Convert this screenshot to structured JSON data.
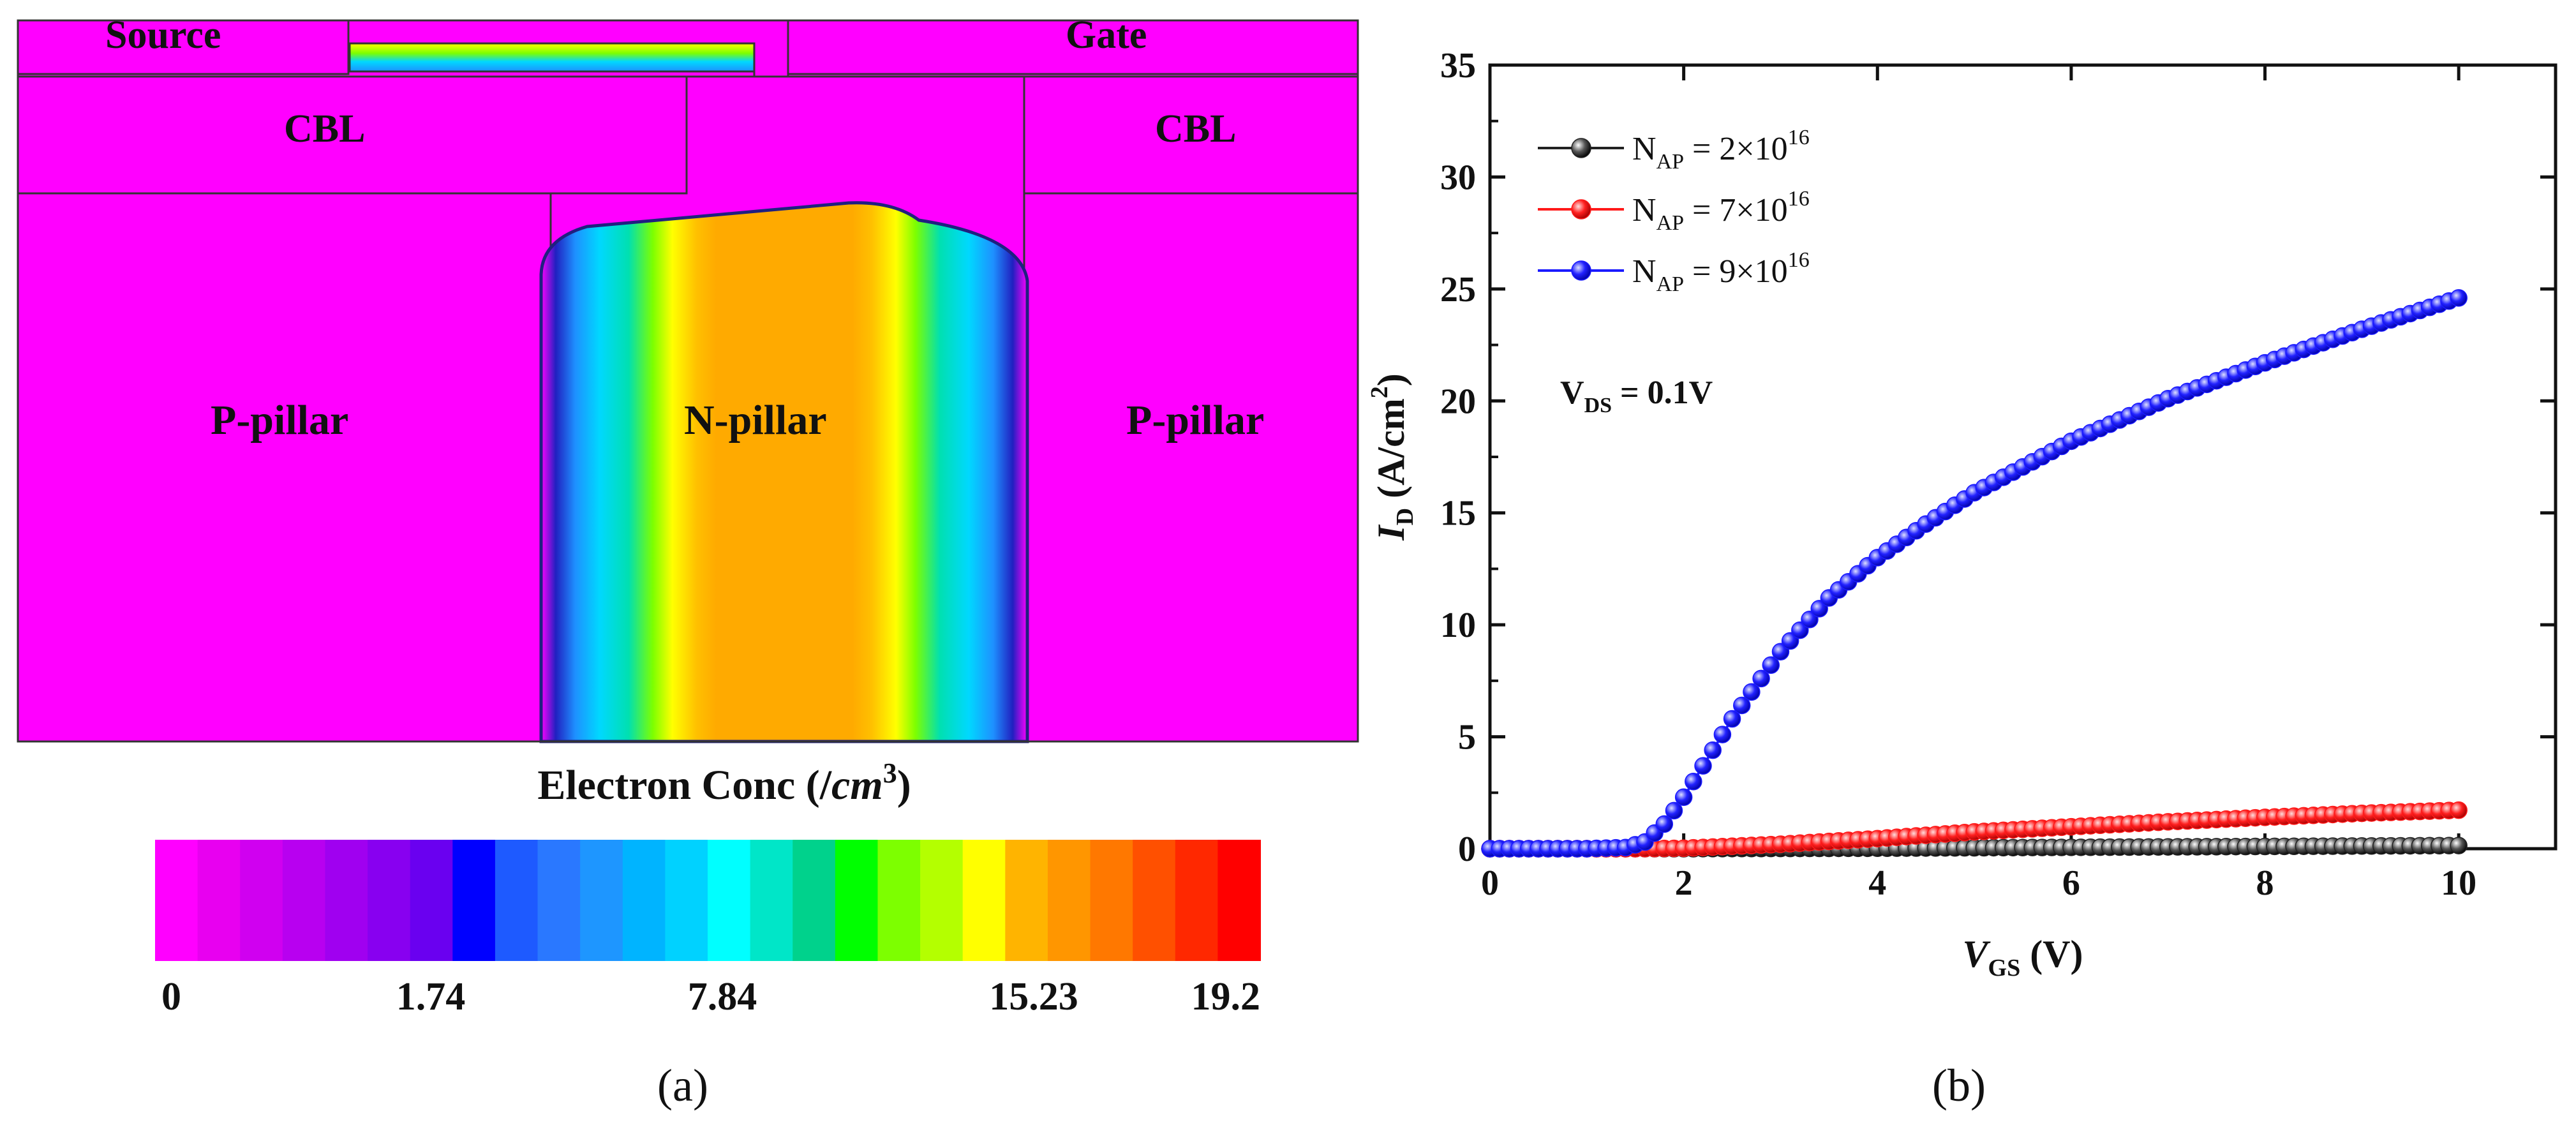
{
  "panel_a": {
    "caption": "(a)",
    "labels": {
      "source": "Source",
      "gate": "Gate",
      "cbl_left": "CBL",
      "cbl_right": "CBL",
      "p_pillar_left": "P-pillar",
      "n_pillar": "N-pillar",
      "p_pillar_right": "P-pillar"
    },
    "colorbar": {
      "title_prefix": "Electron Conc (/",
      "title_unit": "cm",
      "title_exp": "3",
      "title_suffix": ")",
      "ticks": [
        "0",
        "1.74",
        "7.84",
        "15.23",
        "19.2"
      ],
      "colors": [
        "#ff00ff",
        "#e800f0",
        "#d000f0",
        "#b800f0",
        "#a000f0",
        "#8800f0",
        "#6a00f0",
        "#0000ff",
        "#1e5aff",
        "#2a78ff",
        "#1e96ff",
        "#00b4ff",
        "#00d2ff",
        "#00ffff",
        "#00e6c8",
        "#00d28c",
        "#00ff00",
        "#7dff00",
        "#b4ff00",
        "#ffff00",
        "#ffb400",
        "#ff9600",
        "#ff7800",
        "#ff5000",
        "#ff2800",
        "#ff0000"
      ]
    }
  },
  "panel_b": {
    "caption": "(b)",
    "annotation": {
      "main": "V",
      "sub": "DS",
      "rest": " = 0.1V"
    },
    "chart_data": {
      "type": "scatter",
      "title": "",
      "xlabel": {
        "main": "V",
        "sub": "GS",
        "rest": " (V)"
      },
      "ylabel": {
        "main": "I",
        "sub": "D",
        "rest": " (A/cm",
        "sup": "2",
        "end": ")"
      },
      "xlim": [
        0,
        11
      ],
      "ylim": [
        0,
        35
      ],
      "x_ticks": [
        "0",
        "2",
        "4",
        "6",
        "8",
        "10"
      ],
      "y_ticks": [
        "0",
        "5",
        "10",
        "15",
        "20",
        "25",
        "30",
        "35"
      ],
      "legend_position": "top-left",
      "series": [
        {
          "name": "NAP = 2×10^16",
          "legend": {
            "n": "N",
            "sub": "AP",
            "eq": " = 2×10",
            "sup": "16"
          },
          "color": "#222222",
          "x": [
            0,
            1,
            2,
            3,
            4,
            5,
            6,
            7,
            8,
            9,
            10
          ],
          "y": [
            0,
            0,
            0,
            0.01,
            0.02,
            0.04,
            0.06,
            0.08,
            0.1,
            0.12,
            0.14
          ]
        },
        {
          "name": "NAP = 7×10^16",
          "legend": {
            "n": "N",
            "sub": "AP",
            "eq": " = 7×10",
            "sup": "16"
          },
          "color": "#ff1a1a",
          "x": [
            0,
            1,
            1.5,
            2,
            3,
            4,
            5,
            6,
            7,
            8,
            9,
            10
          ],
          "y": [
            0,
            0,
            0,
            0.02,
            0.2,
            0.45,
            0.75,
            0.98,
            1.2,
            1.4,
            1.58,
            1.72
          ]
        },
        {
          "name": "NAP = 9×10^16",
          "legend": {
            "n": "N",
            "sub": "AP",
            "eq": " = 9×10",
            "sup": "16"
          },
          "color": "#1a1aff",
          "x": [
            0,
            1,
            1.4,
            1.6,
            1.8,
            2,
            2.2,
            2.5,
            3,
            3.5,
            4,
            4.5,
            5,
            6,
            7,
            8,
            9,
            10
          ],
          "y": [
            0,
            0,
            0.05,
            0.3,
            1.1,
            2.3,
            3.7,
            5.8,
            8.8,
            11.2,
            13.0,
            14.5,
            15.9,
            18.2,
            20.1,
            21.7,
            23.2,
            24.6
          ]
        }
      ]
    }
  }
}
